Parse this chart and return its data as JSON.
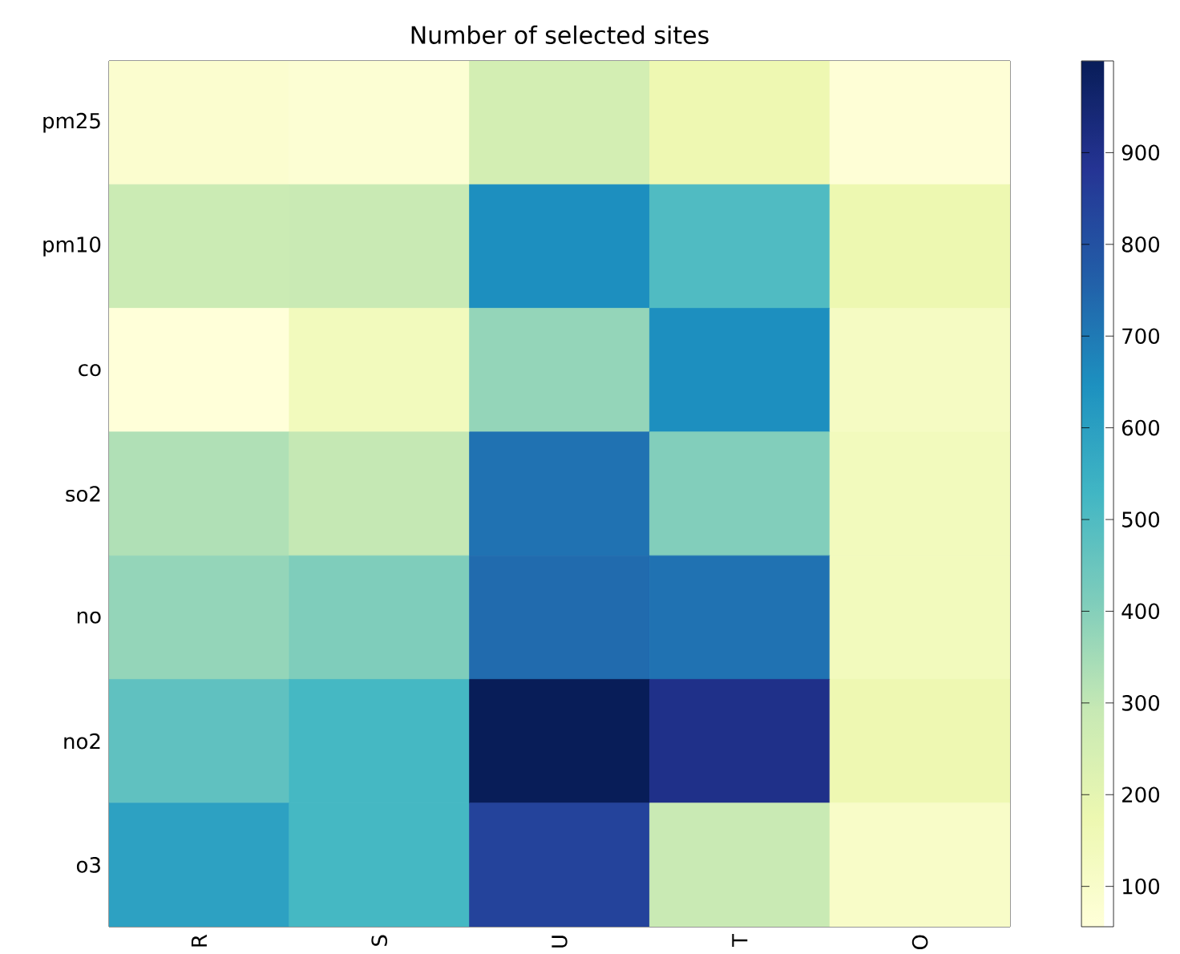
{
  "chart_data": {
    "type": "heatmap",
    "title": "Number of selected sites",
    "categories": [
      "R",
      "S",
      "U",
      "T",
      "O"
    ],
    "y_categories": [
      "pm25",
      "pm10",
      "co",
      "so2",
      "no",
      "no2",
      "o3"
    ],
    "cells": [
      [
        85,
        75,
        255,
        170,
        65
      ],
      [
        280,
        285,
        650,
        500,
        175
      ],
      [
        56,
        140,
        375,
        650,
        120
      ],
      [
        330,
        295,
        717,
        405,
        140
      ],
      [
        375,
        410,
        735,
        717,
        140
      ],
      [
        470,
        520,
        1000,
        905,
        170
      ],
      [
        595,
        520,
        840,
        285,
        105
      ]
    ],
    "clim": [
      56,
      1000
    ],
    "cticks": [
      100,
      200,
      300,
      400,
      500,
      600,
      700,
      800,
      900
    ]
  }
}
